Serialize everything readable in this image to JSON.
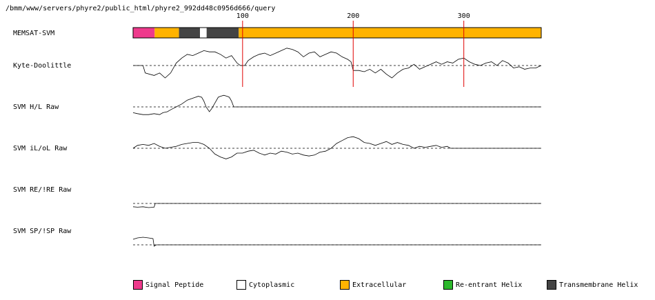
{
  "path_text": "/bmm/www/servers/phyre2/public_html/phyre2_992dd48c0956d666/query",
  "ruler": {
    "ticks": [
      100,
      200,
      300
    ],
    "seq_length": 370
  },
  "tracks": [
    {
      "label": "MEMSAT-SVM"
    },
    {
      "label": "Kyte-Doolittle"
    },
    {
      "label": "SVM H/L Raw"
    },
    {
      "label": "SVM iL/oL Raw"
    },
    {
      "label": "SVM RE/!RE Raw"
    },
    {
      "label": "SVM SP/!SP Raw"
    }
  ],
  "memsat_segments": [
    {
      "type": "signal_peptide",
      "start": 1,
      "end": 20
    },
    {
      "type": "extracellular",
      "start": 21,
      "end": 42
    },
    {
      "type": "transmembrane_helix",
      "start": 43,
      "end": 61
    },
    {
      "type": "cytoplasmic",
      "start": 62,
      "end": 67
    },
    {
      "type": "transmembrane_helix",
      "start": 68,
      "end": 96
    },
    {
      "type": "extracellular",
      "start": 97,
      "end": 370
    }
  ],
  "legend": [
    {
      "key": "signal_peptide",
      "label": "Signal Peptide",
      "color": "#ee3a8c"
    },
    {
      "key": "cytoplasmic",
      "label": "Cytoplasmic",
      "color": "#ffffff"
    },
    {
      "key": "extracellular",
      "label": "Extracellular",
      "color": "#ffb300"
    },
    {
      "key": "reentrant_helix",
      "label": "Re-entrant Helix",
      "color": "#2db82d"
    },
    {
      "key": "transmembrane_helix",
      "label": "Transmembrane Helix",
      "color": "#444444"
    }
  ],
  "ruler_line_color": "#e00000",
  "chart_data": {
    "type": "line",
    "x_range": [
      1,
      370
    ],
    "kyte_doolittle": [
      [
        1,
        0
      ],
      [
        10,
        0
      ],
      [
        12,
        -0.3
      ],
      [
        20,
        -0.4
      ],
      [
        25,
        -0.3
      ],
      [
        30,
        -0.5
      ],
      [
        35,
        -0.3
      ],
      [
        40,
        0.1
      ],
      [
        45,
        0.3
      ],
      [
        50,
        0.45
      ],
      [
        55,
        0.4
      ],
      [
        60,
        0.5
      ],
      [
        65,
        0.6
      ],
      [
        70,
        0.55
      ],
      [
        75,
        0.55
      ],
      [
        80,
        0.45
      ],
      [
        85,
        0.3
      ],
      [
        90,
        0.4
      ],
      [
        95,
        0.1
      ],
      [
        98,
        0
      ],
      [
        102,
        0
      ],
      [
        105,
        0.2
      ],
      [
        110,
        0.35
      ],
      [
        115,
        0.45
      ],
      [
        120,
        0.5
      ],
      [
        125,
        0.4
      ],
      [
        130,
        0.5
      ],
      [
        135,
        0.6
      ],
      [
        140,
        0.7
      ],
      [
        145,
        0.65
      ],
      [
        150,
        0.55
      ],
      [
        155,
        0.35
      ],
      [
        160,
        0.5
      ],
      [
        165,
        0.55
      ],
      [
        170,
        0.35
      ],
      [
        175,
        0.45
      ],
      [
        180,
        0.55
      ],
      [
        185,
        0.5
      ],
      [
        190,
        0.35
      ],
      [
        195,
        0.25
      ],
      [
        198,
        0.15
      ],
      [
        200,
        -0.2
      ],
      [
        205,
        -0.2
      ],
      [
        210,
        -0.25
      ],
      [
        215,
        -0.15
      ],
      [
        220,
        -0.3
      ],
      [
        225,
        -0.15
      ],
      [
        230,
        -0.35
      ],
      [
        235,
        -0.5
      ],
      [
        240,
        -0.3
      ],
      [
        245,
        -0.15
      ],
      [
        250,
        -0.1
      ],
      [
        255,
        0.05
      ],
      [
        260,
        -0.15
      ],
      [
        265,
        -0.05
      ],
      [
        270,
        0.05
      ],
      [
        275,
        0.15
      ],
      [
        280,
        0.05
      ],
      [
        285,
        0.15
      ],
      [
        290,
        0.1
      ],
      [
        295,
        0.25
      ],
      [
        300,
        0.3
      ],
      [
        305,
        0.15
      ],
      [
        310,
        0.05
      ],
      [
        315,
        0.0
      ],
      [
        320,
        0.1
      ],
      [
        325,
        0.15
      ],
      [
        330,
        0.0
      ],
      [
        335,
        0.2
      ],
      [
        340,
        0.1
      ],
      [
        345,
        -0.1
      ],
      [
        350,
        -0.05
      ],
      [
        355,
        -0.15
      ],
      [
        360,
        -0.1
      ],
      [
        365,
        -0.1
      ],
      [
        370,
        0.0
      ]
    ],
    "svm_hl": [
      [
        1,
        -0.3
      ],
      [
        5,
        -0.35
      ],
      [
        10,
        -0.4
      ],
      [
        15,
        -0.4
      ],
      [
        20,
        -0.35
      ],
      [
        25,
        -0.4
      ],
      [
        28,
        -0.3
      ],
      [
        32,
        -0.25
      ],
      [
        35,
        -0.15
      ],
      [
        40,
        0.0
      ],
      [
        45,
        0.15
      ],
      [
        50,
        0.35
      ],
      [
        55,
        0.45
      ],
      [
        60,
        0.55
      ],
      [
        63,
        0.5
      ],
      [
        65,
        0.3
      ],
      [
        67,
        0.0
      ],
      [
        70,
        -0.25
      ],
      [
        72,
        -0.1
      ],
      [
        75,
        0.2
      ],
      [
        78,
        0.5
      ],
      [
        80,
        0.55
      ],
      [
        83,
        0.6
      ],
      [
        86,
        0.55
      ],
      [
        88,
        0.5
      ],
      [
        90,
        0.3
      ],
      [
        92,
        0.0
      ],
      [
        370,
        0.0
      ]
    ],
    "svm_iloL": [
      [
        1,
        0
      ],
      [
        5,
        0.15
      ],
      [
        10,
        0.2
      ],
      [
        15,
        0.15
      ],
      [
        20,
        0.25
      ],
      [
        25,
        0.1
      ],
      [
        30,
        0.0
      ],
      [
        35,
        0.05
      ],
      [
        40,
        0.1
      ],
      [
        45,
        0.2
      ],
      [
        50,
        0.25
      ],
      [
        55,
        0.3
      ],
      [
        60,
        0.3
      ],
      [
        65,
        0.2
      ],
      [
        70,
        0.0
      ],
      [
        75,
        -0.3
      ],
      [
        80,
        -0.45
      ],
      [
        85,
        -0.55
      ],
      [
        90,
        -0.45
      ],
      [
        95,
        -0.25
      ],
      [
        100,
        -0.25
      ],
      [
        105,
        -0.15
      ],
      [
        110,
        -0.1
      ],
      [
        115,
        -0.25
      ],
      [
        120,
        -0.35
      ],
      [
        125,
        -0.25
      ],
      [
        130,
        -0.3
      ],
      [
        135,
        -0.15
      ],
      [
        140,
        -0.2
      ],
      [
        145,
        -0.3
      ],
      [
        150,
        -0.25
      ],
      [
        155,
        -0.35
      ],
      [
        160,
        -0.4
      ],
      [
        165,
        -0.35
      ],
      [
        170,
        -0.2
      ],
      [
        175,
        -0.15
      ],
      [
        180,
        0.0
      ],
      [
        185,
        0.25
      ],
      [
        190,
        0.4
      ],
      [
        195,
        0.55
      ],
      [
        200,
        0.6
      ],
      [
        205,
        0.5
      ],
      [
        210,
        0.3
      ],
      [
        215,
        0.25
      ],
      [
        220,
        0.15
      ],
      [
        225,
        0.25
      ],
      [
        230,
        0.35
      ],
      [
        235,
        0.2
      ],
      [
        240,
        0.3
      ],
      [
        245,
        0.2
      ],
      [
        250,
        0.15
      ],
      [
        255,
        0.0
      ],
      [
        260,
        0.1
      ],
      [
        265,
        0.05
      ],
      [
        270,
        0.1
      ],
      [
        275,
        0.15
      ],
      [
        280,
        0.05
      ],
      [
        285,
        0.1
      ],
      [
        288,
        0.0
      ],
      [
        370,
        0.0
      ]
    ],
    "svm_re": [
      [
        1,
        -0.4
      ],
      [
        5,
        -0.45
      ],
      [
        10,
        -0.4
      ],
      [
        15,
        -0.5
      ],
      [
        20,
        -0.45
      ],
      [
        21,
        0.0
      ],
      [
        370,
        0.0
      ]
    ],
    "svm_sp": [
      [
        1,
        0.4
      ],
      [
        5,
        0.5
      ],
      [
        10,
        0.55
      ],
      [
        15,
        0.5
      ],
      [
        19,
        0.45
      ],
      [
        20,
        -0.1
      ],
      [
        22,
        0.0
      ],
      [
        370,
        0.0
      ]
    ]
  }
}
